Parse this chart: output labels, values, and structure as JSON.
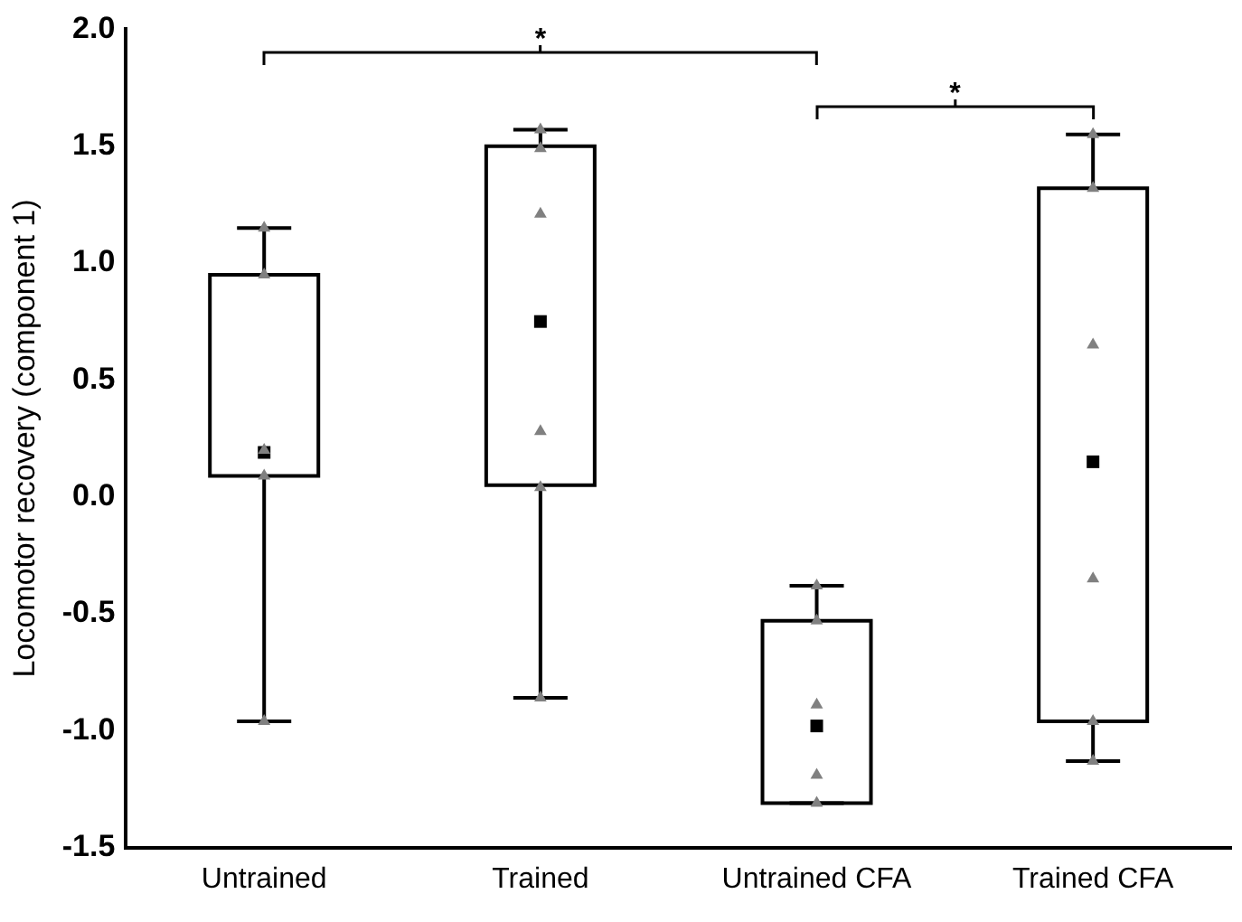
{
  "chart_data": {
    "type": "box",
    "ylabel": "Locomotor recovery (component 1)",
    "categories": [
      "Untrained",
      "Trained",
      "Untrained CFA",
      "Trained CFA"
    ],
    "ylim": [
      -1.5,
      2.0
    ],
    "yticks": [
      {
        "value": -1.5,
        "label": "-1.5"
      },
      {
        "value": -1.0,
        "label": "-1.0"
      },
      {
        "value": -0.5,
        "label": "-0.5"
      },
      {
        "value": 0,
        "label": "0.0"
      },
      {
        "value": 0.5,
        "label": "0.5"
      },
      {
        "value": 1.0,
        "label": "1.0"
      },
      {
        "value": 1.5,
        "label": "1.5"
      },
      {
        "value": 2.0,
        "label": "2.0"
      }
    ],
    "boxes": [
      {
        "low": -0.96,
        "q1": 0.09,
        "median": null,
        "q3": 0.95,
        "high": 1.15,
        "mean": 0.19
      },
      {
        "low": -0.86,
        "q1": 0.05,
        "median": null,
        "q3": 1.5,
        "high": 1.57,
        "mean": 0.75
      },
      {
        "low": -1.31,
        "q1": -1.31,
        "median": null,
        "q3": -0.53,
        "high": -0.38,
        "mean": -0.98
      },
      {
        "low": -1.13,
        "q1": -0.96,
        "median": null,
        "q3": 1.32,
        "high": 1.55,
        "mean": 0.15
      }
    ],
    "series": [
      {
        "type": "scatter",
        "color": "#808080",
        "marker": "triangle",
        "x": [
          "Untrained",
          "Untrained",
          "Untrained",
          "Untrained",
          "Untrained",
          "Trained",
          "Trained",
          "Trained",
          "Trained",
          "Trained",
          "Trained",
          "Untrained CFA",
          "Untrained CFA",
          "Untrained CFA",
          "Untrained CFA",
          "Untrained CFA",
          "Trained CFA",
          "Trained CFA",
          "Trained CFA",
          "Trained CFA",
          "Trained CFA",
          "Trained CFA"
        ],
        "values": [
          1.15,
          0.95,
          0.2,
          0.09,
          -0.96,
          1.57,
          1.49,
          1.21,
          0.28,
          0.04,
          -0.86,
          -0.38,
          -0.53,
          -0.89,
          -1.19,
          -1.31,
          1.55,
          1.32,
          0.65,
          -0.35,
          -0.96,
          -1.13
        ]
      }
    ],
    "annotations": [
      "*",
      "*"
    ],
    "grid": false,
    "legend": false
  }
}
